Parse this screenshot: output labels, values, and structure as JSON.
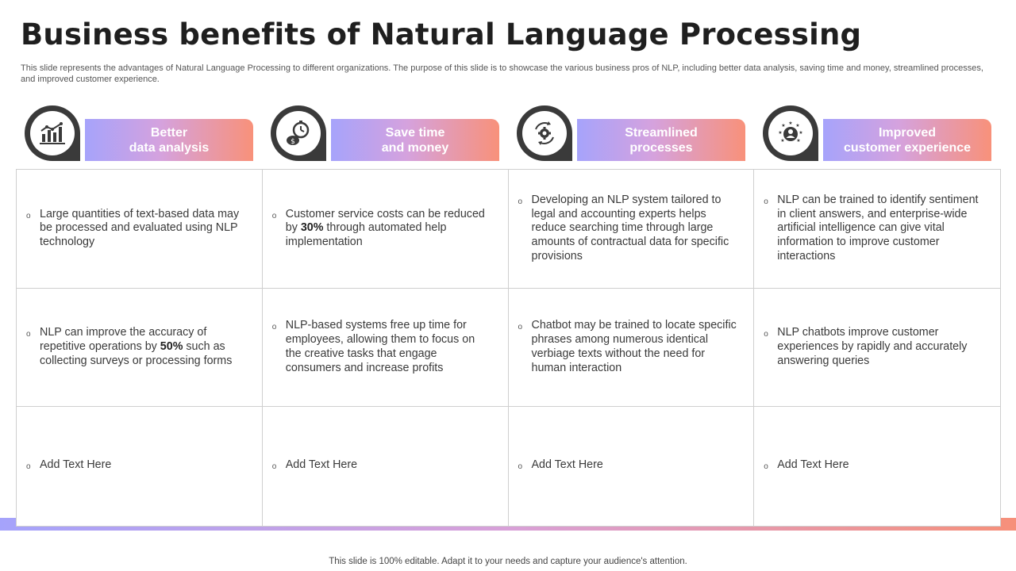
{
  "title": "Business benefits of Natural Language Processing",
  "subtitle": "This slide represents the advantages of Natural Language Processing  to different organizations. The purpose of this slide is to showcase the various business pros of NLP, including better data analysis, saving time and money, streamlined processes, and improved customer experience.",
  "columns": [
    {
      "heading": "Better\ndata analysis",
      "icon": "bar-chart-icon"
    },
    {
      "heading": "Save time\nand money",
      "icon": "clock-coins-icon"
    },
    {
      "heading": "Streamlined\nprocesses",
      "icon": "process-gear-icon"
    },
    {
      "heading": "Improved\ncustomer experience",
      "icon": "customer-stars-icon"
    }
  ],
  "rows": [
    [
      {
        "before": "Large quantities of text-based data may be processed and evaluated using NLP technology",
        "bold": "",
        "after": ""
      },
      {
        "before": "Customer service costs can be reduced by ",
        "bold": "30%",
        "after": " through automated help implementation"
      },
      {
        "before": "Developing an NLP system tailored to legal and accounting experts helps reduce searching time through large amounts of contractual data for specific provisions",
        "bold": "",
        "after": ""
      },
      {
        "before": "NLP can be trained to identify sentiment in client answers, and enterprise-wide artificial intelligence can give vital information to improve customer interactions",
        "bold": "",
        "after": ""
      }
    ],
    [
      {
        "before": "NLP can improve the accuracy of repetitive operations by ",
        "bold": "50%",
        "after": " such as collecting surveys or processing forms"
      },
      {
        "before": "NLP-based systems free up time for employees, allowing them to focus on the creative tasks that engage consumers and increase profits",
        "bold": "",
        "after": ""
      },
      {
        "before": "Chatbot may be trained to locate specific phrases among numerous identical verbiage texts without the need for human interaction",
        "bold": "",
        "after": ""
      },
      {
        "before": "NLP chatbots improve customer experiences by rapidly and accurately answering queries",
        "bold": "",
        "after": ""
      }
    ],
    [
      {
        "before": "Add Text Here",
        "bold": "",
        "after": ""
      },
      {
        "before": "Add Text Here",
        "bold": "",
        "after": ""
      },
      {
        "before": "Add Text Here",
        "bold": "",
        "after": ""
      },
      {
        "before": "Add Text Here",
        "bold": "",
        "after": ""
      }
    ]
  ],
  "bullet_symbol": "o",
  "footer": "This slide is 100% editable. Adapt it to your needs and capture your audience's attention.",
  "colors": {
    "accent_start": "#a6a3fb",
    "accent_mid": "#d5a2de",
    "accent_end": "#f8917a",
    "icon_ring": "#3a3a3a"
  }
}
